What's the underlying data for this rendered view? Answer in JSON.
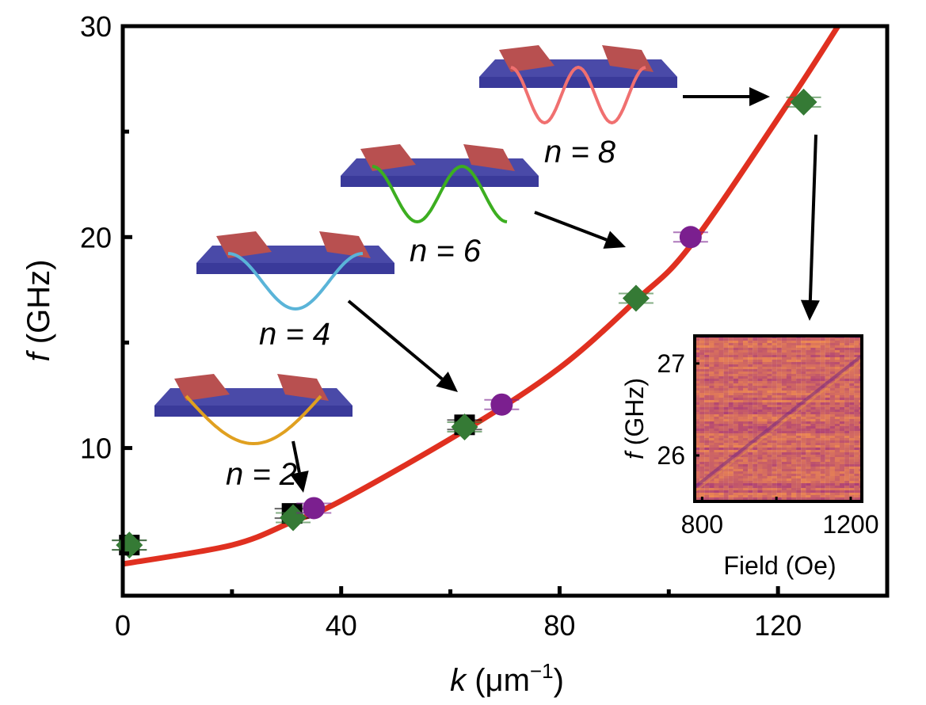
{
  "chart_data": {
    "type": "scatter",
    "xlabel": "k (μm⁻¹)",
    "xlabel_var": "k",
    "xlabel_unit": " (μm",
    "xlabel_exp": "−1",
    "xlabel_close": ")",
    "ylabel_var": "f",
    "ylabel_unit": " (GHz)",
    "xlim": [
      0,
      140
    ],
    "ylim": [
      3,
      30
    ],
    "xticks": [
      0,
      40,
      80,
      120
    ],
    "yticks": [
      10,
      20,
      30
    ],
    "grid": false,
    "colors": {
      "fit": "#e03020",
      "diamond": "#357a35",
      "circle": "#7b1f8f",
      "square": "#000000"
    },
    "series": [
      {
        "marker": "diamond",
        "x": [
          1.2,
          31.2,
          62.6,
          94,
          124.7
        ],
        "y": [
          5.4,
          6.7,
          11.0,
          17.1,
          26.4
        ]
      },
      {
        "marker": "circle",
        "x": [
          35,
          69.4,
          104
        ],
        "y": [
          7.15,
          12.06,
          20.0
        ]
      },
      {
        "marker": "square",
        "x": [
          1.2,
          31.0,
          62.6
        ],
        "y": [
          5.4,
          6.9,
          11.1
        ]
      },
      {
        "marker": "line",
        "x": [
          0,
          20,
          31,
          40,
          63,
          80,
          94,
          104,
          122,
          131
        ],
        "y": [
          4.5,
          5.4,
          6.5,
          7.5,
          10.9,
          13.8,
          17.0,
          19.6,
          26.4,
          30.0
        ]
      }
    ],
    "annotations": [
      {
        "label": "n = 2",
        "n": "n",
        "eq": "=",
        "num": "2",
        "wave_color": "#e0a020",
        "half_waves": 1
      },
      {
        "label": "n = 4",
        "n": "n",
        "eq": "=",
        "num": "4",
        "wave_color": "#5ab4d8",
        "half_waves": 2
      },
      {
        "label": "n = 6",
        "n": "n",
        "eq": "=",
        "num": "6",
        "wave_color": "#3cae20",
        "half_waves": 3
      },
      {
        "label": "n = 8",
        "n": "n",
        "eq": "=",
        "num": "8",
        "wave_color": "#f07070",
        "half_waves": 4
      }
    ],
    "inset": {
      "type": "heatmap",
      "xlabel": "Field (Oe)",
      "ylabel_var": "f",
      "ylabel_unit": " (GHz)",
      "xlim": [
        780,
        1230
      ],
      "ylim": [
        25.5,
        27.3
      ],
      "xticks": [
        800,
        1200
      ],
      "yticks": [
        26,
        27
      ],
      "colormap": "orange-purple"
    }
  }
}
